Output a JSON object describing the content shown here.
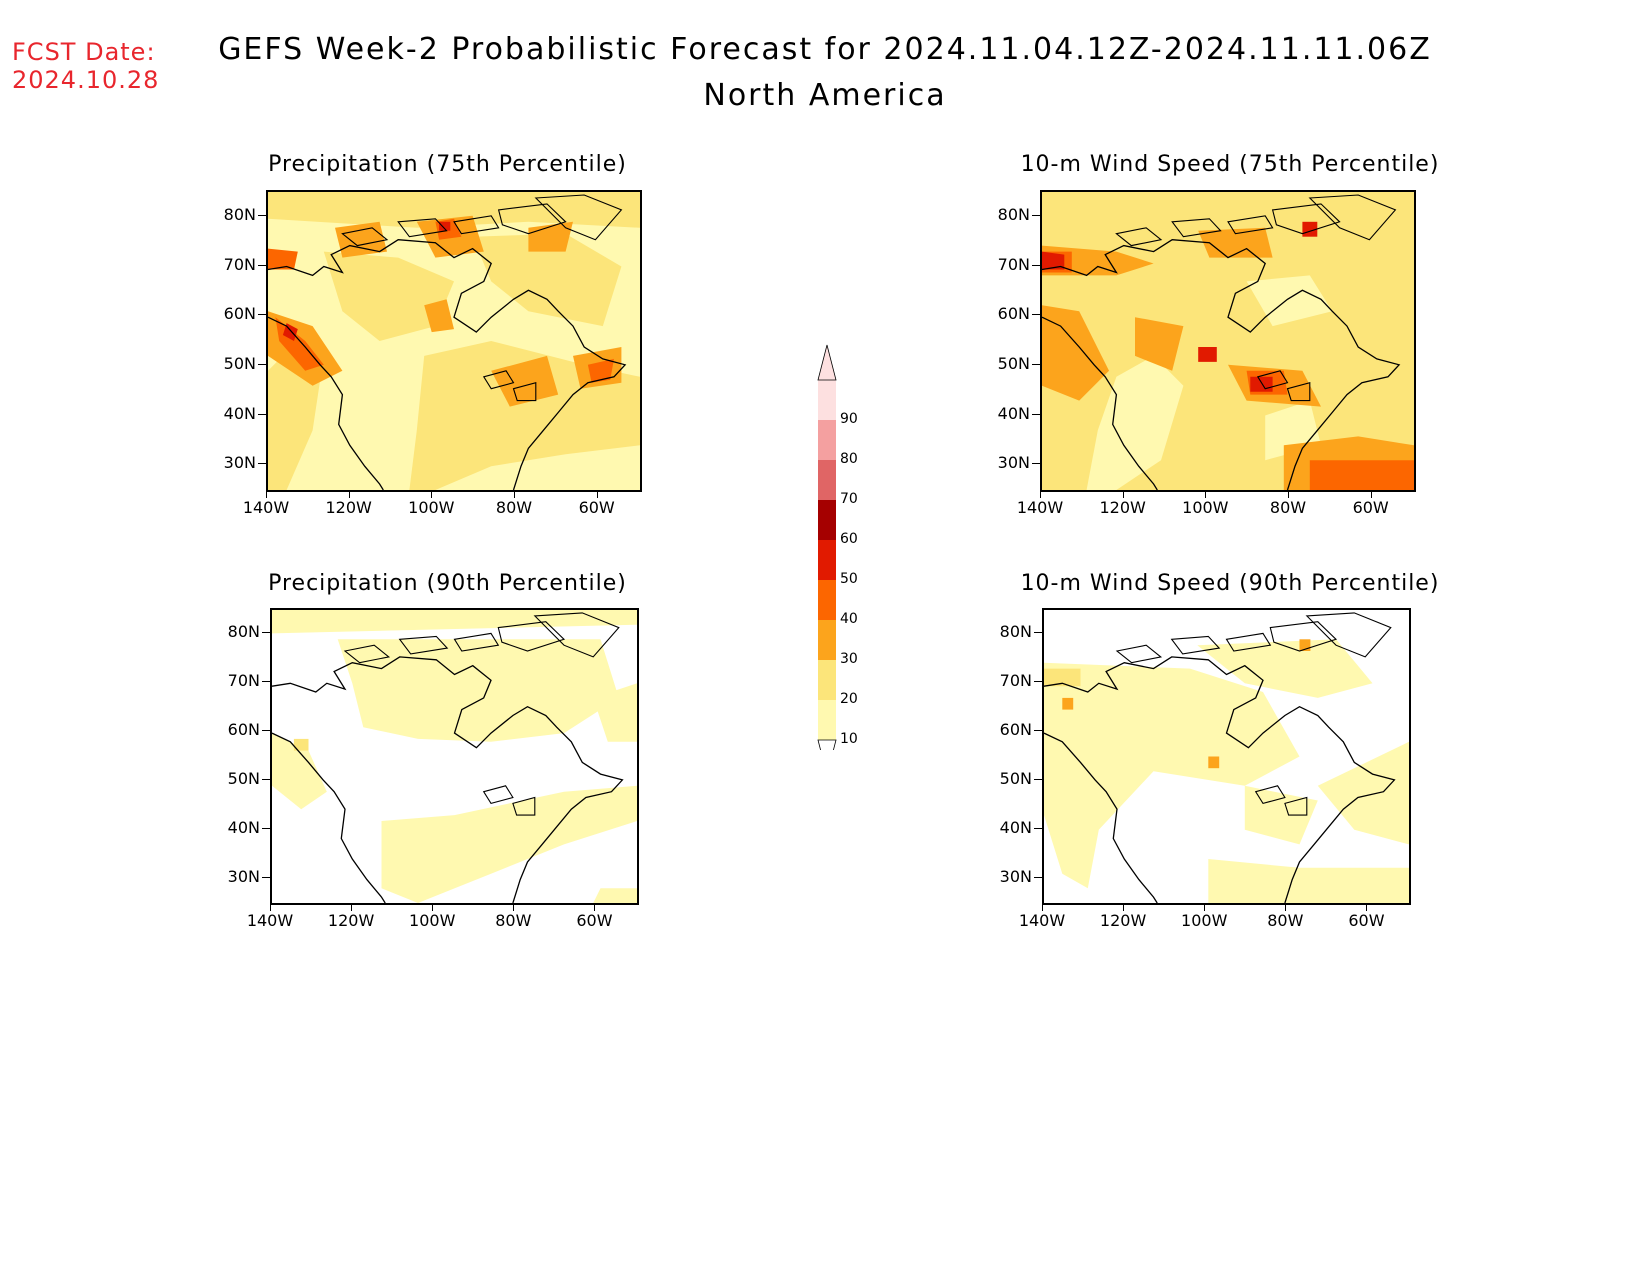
{
  "header": {
    "fcst_label": "FCST Date:",
    "fcst_date": "2024.10.28",
    "title": "GEFS Week-2 Probabilistic Forecast for 2024.11.04.12Z-2024.11.11.06Z",
    "subtitle": "North America"
  },
  "panels": [
    {
      "id": "precip75",
      "title": "Precipitation (75th Percentile)"
    },
    {
      "id": "wind75",
      "title": "10-m Wind Speed (75th Percentile)"
    },
    {
      "id": "precip90",
      "title": "Precipitation (90th Percentile)"
    },
    {
      "id": "wind90",
      "title": "10-m Wind Speed (90th Percentile)"
    }
  ],
  "axes": {
    "lat_labels": [
      "80N",
      "70N",
      "60N",
      "50N",
      "40N",
      "30N"
    ],
    "lat_values": [
      80,
      70,
      60,
      50,
      40,
      30
    ],
    "lon_labels": [
      "140W",
      "120W",
      "100W",
      "80W",
      "60W"
    ],
    "lon_values": [
      -140,
      -120,
      -100,
      -80,
      -60
    ],
    "lat_range": [
      25,
      85
    ],
    "lon_range": [
      -140,
      -50
    ]
  },
  "colorbar": {
    "levels": [
      "10",
      "20",
      "30",
      "40",
      "50",
      "60",
      "70",
      "80",
      "90"
    ],
    "colors": [
      "#fff9b0",
      "#fce57a",
      "#fca41c",
      "#fc6600",
      "#e11a00",
      "#a50000",
      "#e06565",
      "#f4a0a0",
      "#fde0e0"
    ]
  }
}
